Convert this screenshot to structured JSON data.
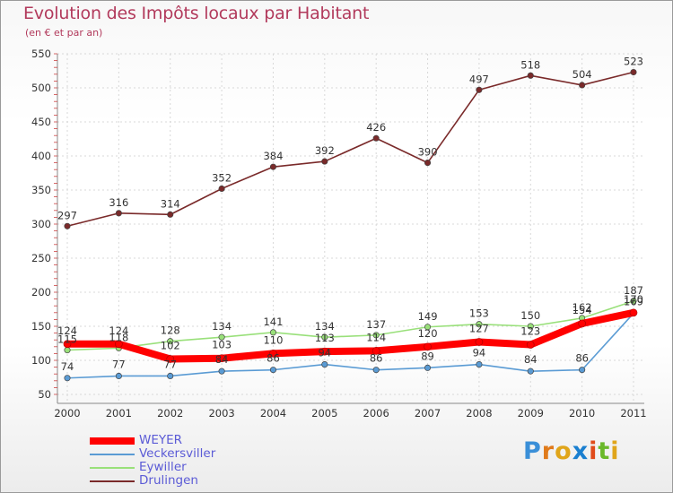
{
  "header": {
    "title": "Evolution des Impôts locaux par Habitant",
    "subtitle": "(en € et par an)"
  },
  "chart_data": {
    "type": "line",
    "x": [
      "2000",
      "2001",
      "2002",
      "2003",
      "2004",
      "2005",
      "2006",
      "2007",
      "2008",
      "2009",
      "2010",
      "2011"
    ],
    "ylim": [
      50,
      550
    ],
    "yticks": [
      50,
      100,
      150,
      200,
      250,
      300,
      350,
      400,
      450,
      500,
      550
    ],
    "series": [
      {
        "name": "WEYER",
        "color": "#ff0000",
        "values": [
          124,
          124,
          102,
          103,
          110,
          113,
          114,
          120,
          127,
          123,
          154,
          170
        ],
        "labels": [
          "124",
          "124",
          "102",
          "103",
          "110",
          "113",
          "114",
          "120",
          "127",
          "123",
          "154",
          "170"
        ]
      },
      {
        "name": "Veckersviller",
        "color": "#5a9bd4",
        "values": [
          74,
          77,
          77,
          84,
          86,
          94,
          86,
          89,
          94,
          84,
          86,
          169
        ],
        "labels": [
          "74",
          "77",
          "77",
          "84",
          "86",
          "94",
          "86",
          "89",
          "94",
          "84",
          "86",
          "169"
        ]
      },
      {
        "name": "Eywiller",
        "color": "#99e07a",
        "values": [
          115,
          118,
          128,
          134,
          141,
          134,
          137,
          149,
          153,
          150,
          162,
          187
        ],
        "labels": [
          "115",
          "118",
          "128",
          "134",
          "141",
          "134",
          "137",
          "149",
          "153",
          "150",
          "162",
          "187"
        ]
      },
      {
        "name": "Drulingen",
        "color": "#7a2a2a",
        "values": [
          297,
          316,
          314,
          352,
          384,
          392,
          426,
          390,
          497,
          518,
          504,
          523
        ],
        "labels": [
          "297",
          "316",
          "314",
          "352",
          "384",
          "392",
          "426",
          "390",
          "497",
          "518",
          "504",
          "523"
        ]
      }
    ]
  },
  "legend": {
    "items": [
      {
        "label": "WEYER",
        "color": "#ff0000"
      },
      {
        "label": "Veckersviller",
        "color": "#5a9bd4"
      },
      {
        "label": "Eywiller",
        "color": "#99e07a"
      },
      {
        "label": "Drulingen",
        "color": "#7a2a2a"
      }
    ]
  },
  "logo": {
    "letters": [
      "P",
      "r",
      "o",
      "x",
      "i",
      "t",
      "i"
    ],
    "colors": [
      "#3a8fd8",
      "#e07a1a",
      "#e0a51a",
      "#1a7fd0",
      "#e04a1a",
      "#6ab82a",
      "#e0a51a"
    ]
  }
}
